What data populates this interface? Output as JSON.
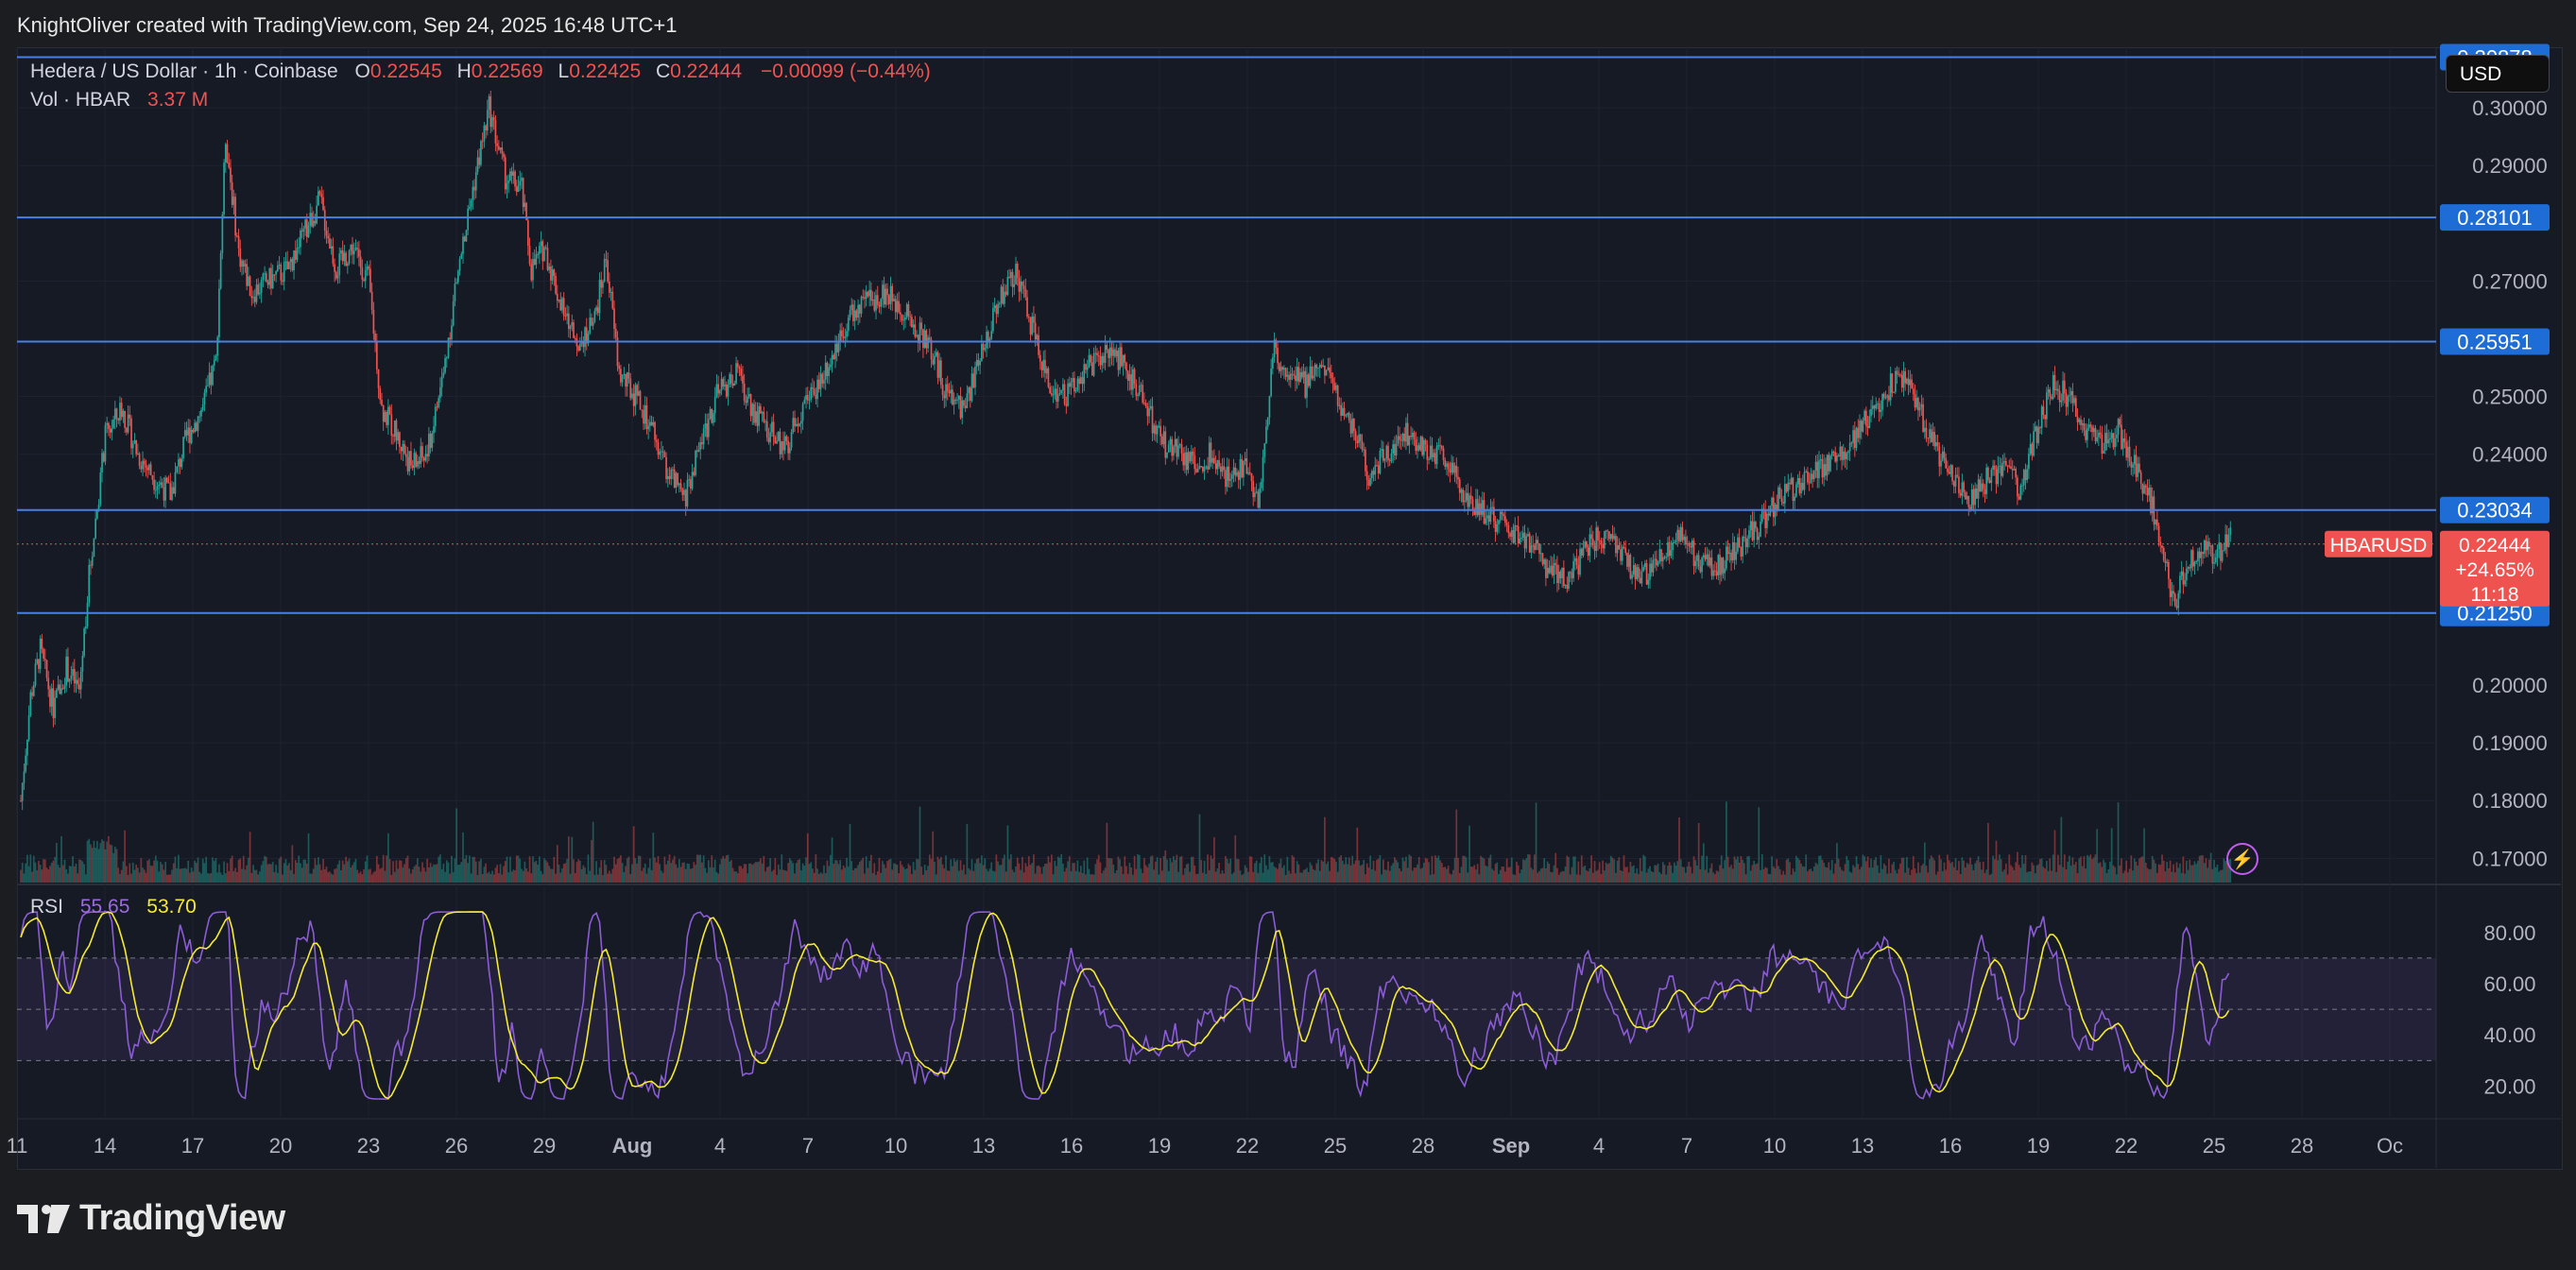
{
  "header": {
    "attribution": "KnightOliver created with TradingView.com, Sep 24, 2025 16:48 UTC+1"
  },
  "legend": {
    "symbol": "Hedera / US Dollar · 1h · Coinbase",
    "o_label": "O",
    "o_value": "0.22545",
    "h_label": "H",
    "h_value": "0.22569",
    "l_label": "L",
    "l_value": "0.22425",
    "c_label": "C",
    "c_value": "0.22444",
    "change": "−0.00099 (−0.44%)",
    "vol_label": "Vol · HBAR",
    "vol_value": "3.37 M"
  },
  "rsi_legend": {
    "label": "RSI",
    "rsi_value": "55.65",
    "ma_value": "53.70"
  },
  "currency_button": "USD",
  "brand": "TradingView",
  "colors": {
    "background": "#161a25",
    "up": "#26a69a",
    "down": "#ef5350",
    "level_line": "#4a7ee8",
    "rsi_line": "#8c5cd6",
    "rsi_ma": "#f5eb2f",
    "rsi_band": "#7e57c2"
  },
  "chart_data": [
    {
      "type": "candlestick",
      "symbol": "HBARUSD",
      "y_axis_ticks": [
        "0.30000",
        "0.29000",
        "0.27000",
        "0.25000",
        "0.24000",
        "0.20000",
        "0.19000",
        "0.18000",
        "0.17000"
      ],
      "ylim": [
        0.1658,
        0.3105
      ],
      "x_axis_ticks": [
        "11",
        "14",
        "17",
        "20",
        "23",
        "26",
        "29",
        "Aug",
        "4",
        "7",
        "10",
        "13",
        "16",
        "19",
        "22",
        "25",
        "28",
        "Sep",
        "4",
        "7",
        "10",
        "13",
        "16",
        "19",
        "22",
        "25",
        "28",
        "Oc"
      ],
      "horizontal_levels": [
        "0.30878",
        "0.28101",
        "0.25951",
        "0.23034",
        "0.21250"
      ],
      "last_price": {
        "symbol": "HBARUSD",
        "value": "0.22444",
        "change": "+24.65%",
        "countdown": "11:18"
      },
      "close_path": [
        [
          0,
          0.18
        ],
        [
          6,
          0.198
        ],
        [
          12,
          0.206
        ],
        [
          20,
          0.196
        ],
        [
          28,
          0.203
        ],
        [
          36,
          0.199
        ],
        [
          42,
          0.219
        ],
        [
          52,
          0.243
        ],
        [
          62,
          0.248
        ],
        [
          72,
          0.24
        ],
        [
          82,
          0.236
        ],
        [
          92,
          0.233
        ],
        [
          102,
          0.243
        ],
        [
          112,
          0.248
        ],
        [
          120,
          0.256
        ],
        [
          126,
          0.295
        ],
        [
          134,
          0.275
        ],
        [
          142,
          0.268
        ],
        [
          152,
          0.27
        ],
        [
          164,
          0.272
        ],
        [
          174,
          0.278
        ],
        [
          184,
          0.284
        ],
        [
          194,
          0.272
        ],
        [
          204,
          0.276
        ],
        [
          214,
          0.27
        ],
        [
          222,
          0.248
        ],
        [
          230,
          0.244
        ],
        [
          240,
          0.238
        ],
        [
          250,
          0.24
        ],
        [
          260,
          0.254
        ],
        [
          268,
          0.27
        ],
        [
          278,
          0.286
        ],
        [
          288,
          0.3
        ],
        [
          298,
          0.288
        ],
        [
          308,
          0.286
        ],
        [
          314,
          0.272
        ],
        [
          322,
          0.276
        ],
        [
          334,
          0.264
        ],
        [
          342,
          0.26
        ],
        [
          352,
          0.262
        ],
        [
          360,
          0.274
        ],
        [
          368,
          0.254
        ],
        [
          378,
          0.25
        ],
        [
          388,
          0.244
        ],
        [
          398,
          0.237
        ],
        [
          408,
          0.232
        ],
        [
          418,
          0.242
        ],
        [
          428,
          0.25
        ],
        [
          440,
          0.254
        ],
        [
          450,
          0.248
        ],
        [
          460,
          0.244
        ],
        [
          470,
          0.241
        ],
        [
          480,
          0.248
        ],
        [
          490,
          0.252
        ],
        [
          500,
          0.258
        ],
        [
          510,
          0.264
        ],
        [
          520,
          0.266
        ],
        [
          530,
          0.268
        ],
        [
          540,
          0.266
        ],
        [
          550,
          0.262
        ],
        [
          560,
          0.258
        ],
        [
          570,
          0.25
        ],
        [
          580,
          0.248
        ],
        [
          590,
          0.256
        ],
        [
          600,
          0.266
        ],
        [
          612,
          0.272
        ],
        [
          622,
          0.262
        ],
        [
          632,
          0.252
        ],
        [
          642,
          0.25
        ],
        [
          652,
          0.254
        ],
        [
          662,
          0.256
        ],
        [
          672,
          0.258
        ],
        [
          682,
          0.254
        ],
        [
          692,
          0.248
        ],
        [
          702,
          0.242
        ],
        [
          712,
          0.24
        ],
        [
          722,
          0.238
        ],
        [
          732,
          0.24
        ],
        [
          742,
          0.236
        ],
        [
          752,
          0.238
        ],
        [
          762,
          0.232
        ],
        [
          770,
          0.258
        ],
        [
          780,
          0.254
        ],
        [
          790,
          0.252
        ],
        [
          800,
          0.256
        ],
        [
          810,
          0.25
        ],
        [
          820,
          0.244
        ],
        [
          830,
          0.236
        ],
        [
          840,
          0.24
        ],
        [
          850,
          0.244
        ],
        [
          860,
          0.242
        ],
        [
          870,
          0.24
        ],
        [
          880,
          0.238
        ],
        [
          890,
          0.232
        ],
        [
          900,
          0.23
        ],
        [
          910,
          0.228
        ],
        [
          920,
          0.226
        ],
        [
          930,
          0.224
        ],
        [
          940,
          0.22
        ],
        [
          950,
          0.218
        ],
        [
          960,
          0.222
        ],
        [
          970,
          0.226
        ],
        [
          980,
          0.224
        ],
        [
          990,
          0.22
        ],
        [
          1000,
          0.219
        ],
        [
          1010,
          0.222
        ],
        [
          1020,
          0.226
        ],
        [
          1030,
          0.222
        ],
        [
          1040,
          0.22
        ],
        [
          1050,
          0.222
        ],
        [
          1060,
          0.225
        ],
        [
          1070,
          0.228
        ],
        [
          1080,
          0.232
        ],
        [
          1090,
          0.234
        ],
        [
          1100,
          0.236
        ],
        [
          1110,
          0.238
        ],
        [
          1120,
          0.24
        ],
        [
          1130,
          0.244
        ],
        [
          1140,
          0.248
        ],
        [
          1150,
          0.252
        ],
        [
          1160,
          0.254
        ],
        [
          1170,
          0.246
        ],
        [
          1180,
          0.24
        ],
        [
          1190,
          0.236
        ],
        [
          1200,
          0.232
        ],
        [
          1210,
          0.236
        ],
        [
          1220,
          0.238
        ],
        [
          1230,
          0.234
        ],
        [
          1240,
          0.244
        ],
        [
          1250,
          0.252
        ],
        [
          1260,
          0.25
        ],
        [
          1270,
          0.244
        ],
        [
          1280,
          0.242
        ],
        [
          1290,
          0.244
        ],
        [
          1300,
          0.238
        ],
        [
          1310,
          0.232
        ],
        [
          1318,
          0.222
        ],
        [
          1324,
          0.214
        ],
        [
          1332,
          0.22
        ],
        [
          1340,
          0.224
        ],
        [
          1350,
          0.222
        ],
        [
          1360,
          0.226
        ]
      ],
      "volume_scale_note": "relative"
    },
    {
      "type": "line",
      "title": "RSI",
      "y_axis_ticks": [
        "80.00",
        "60.00",
        "40.00",
        "20.00"
      ],
      "ylim": [
        8,
        98
      ],
      "bands": [
        30,
        50,
        70
      ],
      "series": [
        {
          "name": "RSI",
          "value": 55.65
        },
        {
          "name": "MA",
          "value": 53.7
        }
      ]
    }
  ]
}
